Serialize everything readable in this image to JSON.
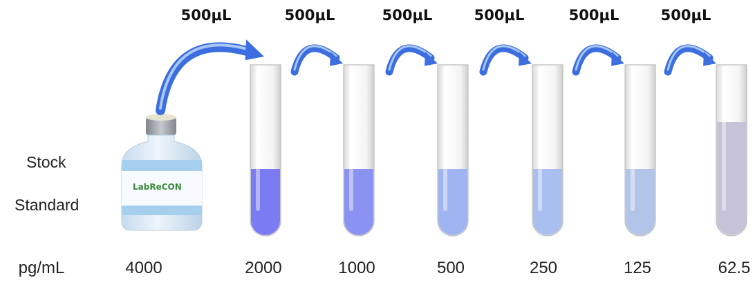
{
  "stock": {
    "line1": "Stock",
    "line2": "Standard",
    "logo": "LabReCON"
  },
  "unit_label": "pg/mL",
  "transfers": [
    "500μL",
    "500μL",
    "500μL",
    "500μL",
    "500μL",
    "500μL"
  ],
  "stock_concentration": "4000",
  "tubes": [
    {
      "concentration": "2000",
      "color": "#7b7bf4"
    },
    {
      "concentration": "1000",
      "color": "#8a92f2"
    },
    {
      "concentration": "500",
      "color": "#a0b4f2"
    },
    {
      "concentration": "250",
      "color": "#a8bff0"
    },
    {
      "concentration": "125",
      "color": "#b2c4e8"
    },
    {
      "concentration": "62.5",
      "color": "#c6c2d8"
    }
  ],
  "colors": {
    "arrow": "#3d6ee0",
    "arrow_light": "#a9c8f6",
    "bottle_body": "#d7e7f5",
    "bottle_band": "#a6cfee",
    "cap": "#9aa0a6"
  }
}
